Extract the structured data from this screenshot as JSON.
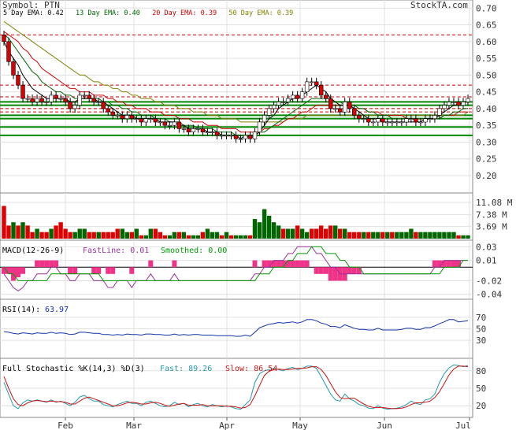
{
  "brand": "StockTA.com",
  "symbol_label": "Symbol: PTN",
  "legend": [
    {
      "text": "5 Day EMA: 0.42",
      "color": "#000000"
    },
    {
      "text": "13 Day EMA: 0.40",
      "color": "#006600"
    },
    {
      "text": "20 Day EMA: 0.39",
      "color": "#cc0000"
    },
    {
      "text": "50 Day EMA: 0.39",
      "color": "#808000"
    }
  ],
  "x_ticks": [
    "Feb",
    "Mar",
    "Apr",
    "May",
    "Jun",
    "Jul"
  ],
  "colors": {
    "up": "#006600",
    "down": "#dd0000",
    "grid": "#e0e0e0",
    "macd_hist": "#ee3388",
    "fast": "#2299aa",
    "slow": "#cc1111",
    "rsi": "#1133aa",
    "smooth": "#009900",
    "macdline": "#993399"
  },
  "chart_data": [
    {
      "type": "candlestick",
      "panel": "price",
      "y_ticks": [
        "0.70",
        "0.65",
        "0.60",
        "0.55",
        "0.50",
        "0.45",
        "0.40",
        "0.35",
        "0.30",
        "0.25",
        "0.20"
      ],
      "ylim": [
        0.16,
        0.71
      ],
      "resistance_dashed": [
        0.62,
        0.47,
        0.435,
        0.4,
        0.39
      ],
      "support_solid": [
        0.42,
        0.41,
        0.38,
        0.37,
        0.345,
        0.32
      ],
      "close": [
        0.6,
        0.54,
        0.5,
        0.47,
        0.43,
        0.43,
        0.42,
        0.43,
        0.42,
        0.42,
        0.44,
        0.43,
        0.43,
        0.42,
        0.4,
        0.41,
        0.44,
        0.44,
        0.43,
        0.42,
        0.42,
        0.4,
        0.39,
        0.38,
        0.38,
        0.37,
        0.38,
        0.37,
        0.37,
        0.36,
        0.37,
        0.37,
        0.36,
        0.36,
        0.35,
        0.35,
        0.36,
        0.34,
        0.34,
        0.33,
        0.34,
        0.34,
        0.33,
        0.33,
        0.33,
        0.32,
        0.32,
        0.32,
        0.32,
        0.31,
        0.31,
        0.32,
        0.31,
        0.33,
        0.36,
        0.38,
        0.4,
        0.41,
        0.42,
        0.42,
        0.43,
        0.44,
        0.43,
        0.45,
        0.48,
        0.48,
        0.47,
        0.44,
        0.43,
        0.4,
        0.4,
        0.39,
        0.42,
        0.4,
        0.38,
        0.37,
        0.37,
        0.36,
        0.36,
        0.37,
        0.36,
        0.36,
        0.36,
        0.36,
        0.36,
        0.37,
        0.37,
        0.36,
        0.36,
        0.37,
        0.37,
        0.38,
        0.4,
        0.41,
        0.42,
        0.42,
        0.41,
        0.42,
        0.43
      ],
      "ema_5": [
        0.6,
        0.57,
        0.55,
        0.53,
        0.5,
        0.48,
        0.46,
        0.45,
        0.44,
        0.43,
        0.43,
        0.43,
        0.43,
        0.43,
        0.42,
        0.42,
        0.43,
        0.43,
        0.43,
        0.43,
        0.42,
        0.42,
        0.41,
        0.4,
        0.39,
        0.38,
        0.38,
        0.38,
        0.37,
        0.37,
        0.37,
        0.37,
        0.37,
        0.36,
        0.36,
        0.36,
        0.36,
        0.35,
        0.35,
        0.34,
        0.34,
        0.34,
        0.34,
        0.33,
        0.33,
        0.33,
        0.32,
        0.32,
        0.32,
        0.32,
        0.31,
        0.32,
        0.31,
        0.32,
        0.33,
        0.35,
        0.37,
        0.38,
        0.4,
        0.41,
        0.42,
        0.43,
        0.43,
        0.44,
        0.45,
        0.46,
        0.47,
        0.46,
        0.45,
        0.43,
        0.42,
        0.41,
        0.41,
        0.41,
        0.4,
        0.39,
        0.38,
        0.37,
        0.37,
        0.37,
        0.36,
        0.36,
        0.36,
        0.36,
        0.36,
        0.36,
        0.36,
        0.36,
        0.36,
        0.37,
        0.37,
        0.37,
        0.38,
        0.39,
        0.4,
        0.41,
        0.41,
        0.42,
        0.42
      ],
      "ema_13": [
        0.62,
        0.61,
        0.59,
        0.57,
        0.55,
        0.53,
        0.51,
        0.5,
        0.48,
        0.47,
        0.46,
        0.45,
        0.45,
        0.44,
        0.44,
        0.43,
        0.43,
        0.43,
        0.43,
        0.43,
        0.43,
        0.42,
        0.42,
        0.41,
        0.41,
        0.4,
        0.4,
        0.39,
        0.39,
        0.38,
        0.38,
        0.38,
        0.37,
        0.37,
        0.37,
        0.36,
        0.36,
        0.36,
        0.35,
        0.35,
        0.35,
        0.34,
        0.34,
        0.34,
        0.34,
        0.33,
        0.33,
        0.33,
        0.33,
        0.32,
        0.32,
        0.32,
        0.32,
        0.32,
        0.33,
        0.33,
        0.34,
        0.35,
        0.36,
        0.37,
        0.38,
        0.39,
        0.4,
        0.41,
        0.42,
        0.43,
        0.43,
        0.43,
        0.43,
        0.43,
        0.42,
        0.42,
        0.41,
        0.41,
        0.41,
        0.4,
        0.4,
        0.39,
        0.39,
        0.38,
        0.38,
        0.38,
        0.37,
        0.37,
        0.37,
        0.37,
        0.37,
        0.37,
        0.37,
        0.37,
        0.37,
        0.37,
        0.37,
        0.38,
        0.38,
        0.39,
        0.39,
        0.4,
        0.4
      ],
      "ema_20": [
        0.63,
        0.62,
        0.61,
        0.6,
        0.58,
        0.57,
        0.55,
        0.54,
        0.52,
        0.51,
        0.5,
        0.49,
        0.48,
        0.47,
        0.46,
        0.46,
        0.45,
        0.45,
        0.45,
        0.44,
        0.44,
        0.44,
        0.43,
        0.43,
        0.42,
        0.42,
        0.41,
        0.41,
        0.4,
        0.4,
        0.4,
        0.39,
        0.39,
        0.39,
        0.38,
        0.38,
        0.38,
        0.37,
        0.37,
        0.37,
        0.36,
        0.36,
        0.36,
        0.35,
        0.35,
        0.35,
        0.34,
        0.34,
        0.34,
        0.34,
        0.33,
        0.33,
        0.33,
        0.33,
        0.33,
        0.34,
        0.34,
        0.35,
        0.35,
        0.36,
        0.37,
        0.37,
        0.38,
        0.39,
        0.39,
        0.4,
        0.41,
        0.41,
        0.41,
        0.41,
        0.41,
        0.41,
        0.41,
        0.41,
        0.4,
        0.4,
        0.4,
        0.39,
        0.39,
        0.39,
        0.38,
        0.38,
        0.38,
        0.38,
        0.38,
        0.37,
        0.37,
        0.37,
        0.37,
        0.37,
        0.37,
        0.37,
        0.37,
        0.38,
        0.38,
        0.38,
        0.39,
        0.39,
        0.39
      ],
      "ema_50": [
        0.66,
        0.65,
        0.64,
        0.63,
        0.62,
        0.61,
        0.6,
        0.59,
        0.58,
        0.57,
        0.56,
        0.55,
        0.54,
        0.53,
        0.52,
        0.51,
        0.5,
        0.5,
        0.49,
        0.48,
        0.48,
        0.47,
        0.47,
        0.46,
        0.46,
        0.45,
        0.45,
        0.44,
        0.44,
        0.43,
        0.43,
        0.43,
        0.42,
        0.42,
        0.41,
        0.41,
        0.41,
        0.4,
        0.4,
        0.4,
        0.39,
        0.39,
        0.39,
        0.38,
        0.38,
        0.38,
        0.37,
        0.37,
        0.37,
        0.37,
        0.36,
        0.36,
        0.36,
        0.36,
        0.36,
        0.36,
        0.36,
        0.36,
        0.36,
        0.36,
        0.37,
        0.37,
        0.37,
        0.37,
        0.38,
        0.38,
        0.38,
        0.38,
        0.38,
        0.38,
        0.38,
        0.38,
        0.38,
        0.38,
        0.38,
        0.38,
        0.38,
        0.38,
        0.38,
        0.38,
        0.38,
        0.38,
        0.38,
        0.38,
        0.38,
        0.38,
        0.38,
        0.38,
        0.38,
        0.38,
        0.38,
        0.38,
        0.38,
        0.38,
        0.38,
        0.38,
        0.38,
        0.38,
        0.39
      ]
    },
    {
      "type": "bar",
      "panel": "volume",
      "y_ticks": [
        "11.08 M",
        "7.38 M",
        "3.69 M"
      ],
      "ylim": [
        0,
        13
      ],
      "values": [
        10,
        4,
        5,
        4,
        5,
        4,
        2,
        3,
        2,
        2,
        3,
        4,
        5,
        3,
        2,
        2,
        3,
        3,
        2,
        2,
        2,
        2,
        2,
        2,
        3,
        3,
        2,
        2,
        3,
        1,
        1,
        3,
        3,
        2,
        1,
        1,
        2,
        2,
        2,
        1,
        1,
        1,
        2,
        3,
        2,
        2,
        1,
        2,
        1,
        1,
        1,
        1,
        1,
        6,
        5,
        9,
        7,
        5,
        4,
        3,
        3,
        3,
        4,
        3,
        2,
        3,
        3,
        4,
        3,
        4,
        4,
        3,
        3,
        2,
        2,
        2,
        2,
        2,
        2,
        2,
        2,
        2,
        2,
        2,
        2,
        2,
        3,
        2,
        2,
        2,
        2,
        2,
        2,
        2,
        2,
        2,
        1,
        1,
        1
      ],
      "up": [
        0,
        0,
        1,
        0,
        1,
        0,
        0,
        1,
        0,
        0,
        1,
        0,
        0,
        0,
        0,
        1,
        1,
        1,
        0,
        0,
        1,
        0,
        0,
        0,
        0,
        1,
        1,
        0,
        1,
        0,
        1,
        1,
        0,
        0,
        0,
        1,
        1,
        0,
        1,
        0,
        1,
        1,
        0,
        1,
        1,
        1,
        0,
        1,
        0,
        1,
        1,
        1,
        0,
        1,
        1,
        1,
        1,
        1,
        1,
        0,
        1,
        1,
        0,
        1,
        1,
        0,
        0,
        0,
        0,
        0,
        1,
        0,
        1,
        0,
        0,
        0,
        1,
        0,
        1,
        1,
        0,
        1,
        0,
        1,
        1,
        1,
        1,
        0,
        1,
        1,
        1,
        1,
        1,
        1,
        1,
        1,
        0,
        1,
        1
      ]
    },
    {
      "type": "macd",
      "panel": "macd",
      "label": "MACD(12-26-9)",
      "fast_label": "FastLine: 0.01",
      "smooth_label": "Smoothed: 0.00",
      "y_ticks": [
        "0.03",
        "0.01",
        "-0.02",
        "-0.04"
      ],
      "ylim": [
        -0.045,
        0.035
      ],
      "fast": [
        -0.01,
        -0.02,
        -0.03,
        -0.035,
        -0.03,
        -0.02,
        -0.02,
        -0.01,
        -0.01,
        -0.01,
        0.0,
        0.0,
        -0.01,
        -0.01,
        -0.02,
        -0.02,
        -0.01,
        -0.01,
        -0.01,
        -0.02,
        -0.02,
        -0.02,
        -0.03,
        -0.03,
        -0.02,
        -0.02,
        -0.02,
        -0.03,
        -0.02,
        -0.02,
        -0.02,
        -0.01,
        -0.02,
        -0.02,
        -0.02,
        -0.02,
        -0.01,
        -0.02,
        -0.02,
        -0.02,
        -0.02,
        -0.02,
        -0.02,
        -0.02,
        -0.02,
        -0.02,
        -0.02,
        -0.02,
        -0.02,
        -0.02,
        -0.02,
        -0.02,
        -0.02,
        -0.01,
        -0.01,
        0.0,
        0.0,
        0.01,
        0.01,
        0.01,
        0.02,
        0.02,
        0.03,
        0.03,
        0.03,
        0.03,
        0.02,
        0.02,
        0.01,
        0.0,
        0.0,
        -0.01,
        -0.01,
        -0.01,
        -0.01,
        -0.01,
        -0.01,
        -0.01,
        -0.01,
        -0.01,
        -0.01,
        -0.01,
        -0.01,
        -0.01,
        -0.01,
        -0.01,
        -0.01,
        -0.01,
        -0.01,
        -0.01,
        -0.01,
        0.0,
        0.0,
        0.01,
        0.01,
        0.01,
        0.01,
        0.01,
        0.01
      ],
      "smoothed": [
        0.0,
        -0.01,
        -0.01,
        -0.02,
        -0.02,
        -0.02,
        -0.02,
        -0.02,
        -0.02,
        -0.02,
        -0.01,
        -0.01,
        -0.01,
        -0.01,
        -0.01,
        -0.01,
        -0.01,
        -0.01,
        -0.01,
        -0.01,
        -0.01,
        -0.02,
        -0.02,
        -0.02,
        -0.02,
        -0.02,
        -0.02,
        -0.02,
        -0.02,
        -0.02,
        -0.02,
        -0.02,
        -0.02,
        -0.02,
        -0.02,
        -0.02,
        -0.02,
        -0.02,
        -0.02,
        -0.02,
        -0.02,
        -0.02,
        -0.02,
        -0.02,
        -0.02,
        -0.02,
        -0.02,
        -0.02,
        -0.02,
        -0.02,
        -0.02,
        -0.02,
        -0.02,
        -0.02,
        -0.01,
        -0.01,
        -0.01,
        0.0,
        0.0,
        0.0,
        0.01,
        0.01,
        0.02,
        0.02,
        0.02,
        0.03,
        0.03,
        0.03,
        0.02,
        0.02,
        0.02,
        0.01,
        0.01,
        0.0,
        0.0,
        0.0,
        -0.01,
        -0.01,
        -0.01,
        -0.01,
        -0.01,
        -0.01,
        -0.01,
        -0.01,
        -0.01,
        -0.01,
        -0.01,
        -0.01,
        -0.01,
        -0.01,
        -0.01,
        -0.01,
        -0.01,
        0.0,
        0.0,
        0.0,
        0.0,
        0.01,
        0.01
      ]
    },
    {
      "type": "line",
      "panel": "rsi",
      "label": "RSI(14):",
      "value_label": "63.97",
      "y_ticks": [
        "70",
        "50",
        "30"
      ],
      "ylim": [
        0,
        100
      ],
      "values": [
        45,
        44,
        42,
        41,
        43,
        42,
        41,
        43,
        42,
        42,
        44,
        42,
        43,
        42,
        40,
        41,
        44,
        44,
        43,
        42,
        42,
        40,
        40,
        39,
        40,
        39,
        41,
        40,
        40,
        39,
        41,
        41,
        40,
        40,
        39,
        39,
        41,
        39,
        40,
        39,
        40,
        40,
        39,
        39,
        39,
        38,
        38,
        38,
        38,
        37,
        37,
        39,
        37,
        44,
        52,
        55,
        58,
        59,
        61,
        60,
        61,
        62,
        60,
        62,
        66,
        66,
        64,
        60,
        58,
        54,
        54,
        52,
        57,
        54,
        51,
        49,
        49,
        48,
        48,
        51,
        48,
        48,
        48,
        48,
        49,
        51,
        51,
        49,
        49,
        52,
        52,
        55,
        59,
        62,
        66,
        66,
        62,
        63,
        64
      ]
    },
    {
      "type": "line",
      "panel": "stochastic",
      "label": "Full Stochastic %K(14,3) %D(3)",
      "fast_label": "Fast: 89.26",
      "slow_label": "Slow: 86.54",
      "y_ticks": [
        "80",
        "50",
        "20"
      ],
      "ylim": [
        0,
        100
      ],
      "fast": [
        60,
        40,
        20,
        15,
        25,
        30,
        28,
        30,
        28,
        26,
        30,
        26,
        28,
        24,
        20,
        26,
        35,
        38,
        32,
        28,
        28,
        22,
        20,
        18,
        22,
        25,
        28,
        24,
        24,
        20,
        26,
        28,
        24,
        20,
        18,
        20,
        26,
        22,
        24,
        18,
        22,
        24,
        20,
        18,
        22,
        20,
        18,
        20,
        18,
        15,
        14,
        22,
        30,
        60,
        75,
        80,
        82,
        84,
        82,
        80,
        84,
        86,
        82,
        84,
        88,
        88,
        84,
        70,
        55,
        40,
        30,
        28,
        40,
        32,
        28,
        22,
        20,
        16,
        15,
        20,
        16,
        14,
        15,
        16,
        18,
        22,
        28,
        24,
        22,
        30,
        32,
        40,
        60,
        75,
        85,
        90,
        89,
        87,
        89
      ],
      "slow": [
        70,
        50,
        32,
        22,
        20,
        25,
        28,
        29,
        28,
        27,
        28,
        27,
        27,
        26,
        23,
        23,
        28,
        33,
        35,
        32,
        29,
        26,
        23,
        20,
        20,
        22,
        25,
        26,
        25,
        23,
        23,
        25,
        26,
        24,
        21,
        19,
        21,
        23,
        24,
        21,
        21,
        21,
        22,
        20,
        20,
        20,
        20,
        19,
        19,
        18,
        16,
        17,
        22,
        37,
        55,
        72,
        79,
        82,
        83,
        82,
        82,
        83,
        84,
        84,
        85,
        87,
        87,
        82,
        72,
        58,
        44,
        34,
        32,
        33,
        33,
        28,
        23,
        19,
        17,
        17,
        17,
        16,
        15,
        15,
        16,
        18,
        22,
        25,
        25,
        26,
        28,
        34,
        44,
        58,
        73,
        83,
        88,
        88,
        87
      ]
    }
  ]
}
